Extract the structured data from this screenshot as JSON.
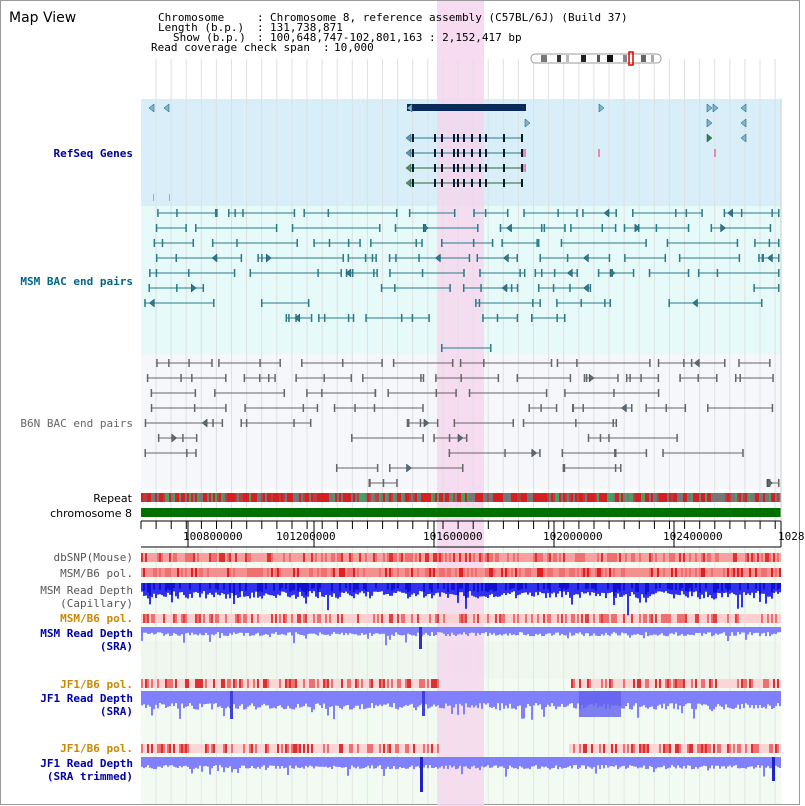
{
  "title": "Map View",
  "info": {
    "chromosome_key": "Chromosome",
    "chromosome_val": "Chromosome 8, reference assembly (C57BL/6J) (Build 37)",
    "length_key": "Length (b.p.)",
    "length_val": "131,738,871",
    "show_key": "Show (b.p.)",
    "show_val": "100,648,747-102,801,163 : 2,152,417 bp",
    "coverage_key": "Read coverage check span",
    "coverage_val": "10,000"
  },
  "tracks": {
    "refseq": "RefSeq Genes",
    "msm_bac": "MSM BAC end pairs",
    "b6n_bac": "B6N BAC end pairs",
    "repeat": "Repeat",
    "chromosome": "chromosome 8",
    "dbsnp": "dbSNP(Mouse)",
    "msm_b6_pol_1": "MSM/B6 pol.",
    "msm_depth_cap_1": "MSM Read Depth",
    "msm_depth_cap_2": "(Capillary)",
    "msm_b6_pol_2": "MSM/B6 pol.",
    "msm_depth_sra_1": "MSM Read Depth",
    "msm_depth_sra_2": "(SRA)",
    "jf1_b6_pol_1": "JF1/B6 pol.",
    "jf1_depth_sra_1": "JF1 Read Depth",
    "jf1_depth_sra_2": "(SRA)",
    "jf1_b6_pol_2": "JF1/B6 pol.",
    "jf1_depth_trim_1": "JF1 Read Depth",
    "jf1_depth_trim_2": "(SRA trimmed)"
  },
  "axis": {
    "ticks": [
      "100800000",
      "101200000",
      "101600000",
      "102000000",
      "102400000",
      "1028"
    ]
  },
  "colors": {
    "refseq_bg": "#d8eef8",
    "bac_bg": "#e6fafa",
    "highlight": "#f6d6ef",
    "msm_feature": "#2a7a8a",
    "b6n_feature": "#666666",
    "chromosome_bar": "#007000",
    "refseq_label": "#000099",
    "msm_label": "#00668a",
    "b6n_label": "#666666",
    "pol_label": "#cc8800",
    "depth_label": "#0000aa",
    "depth_bar": "#8080ff",
    "depth_bar_dark": "#1010e0"
  }
}
